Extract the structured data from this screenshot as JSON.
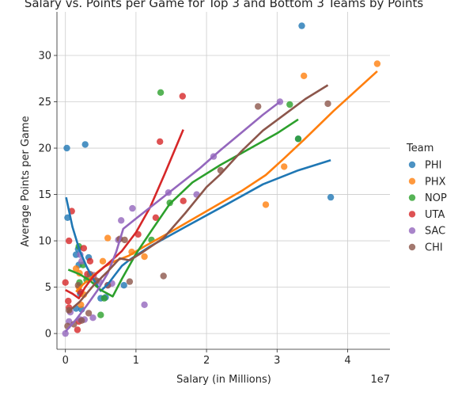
{
  "chart_data": {
    "type": "scatter",
    "title": "Salary vs. Points per Game for Top 3 and Bottom 3 Teams by Points",
    "xlabel": "Salary (in Millions)",
    "ylabel": "Average Points per Game",
    "x_offset_text": "1e7",
    "xlim": [
      -1200000,
      46000000
    ],
    "ylim": [
      -1.7,
      34.7
    ],
    "x_ticks": [
      0,
      10000000,
      20000000,
      30000000,
      40000000
    ],
    "x_tick_labels": [
      "0",
      "1",
      "2",
      "3",
      "4"
    ],
    "y_ticks": [
      0,
      5,
      10,
      15,
      20,
      25,
      30
    ],
    "y_tick_labels": [
      "0",
      "5",
      "10",
      "15",
      "20",
      "25",
      "30"
    ],
    "legend": {
      "title": "Team",
      "placement": "right"
    },
    "series": [
      {
        "name": "PHI",
        "color": "#1f77b4",
        "points": [
          [
            200000,
            20.0
          ],
          [
            2800000,
            20.4
          ],
          [
            300000,
            12.5
          ],
          [
            1500000,
            8.5
          ],
          [
            1800000,
            9.1
          ],
          [
            3300000,
            8.2
          ],
          [
            1900000,
            7.4
          ],
          [
            2100000,
            4.3
          ],
          [
            2300000,
            2.6
          ],
          [
            5000000,
            3.8
          ],
          [
            5700000,
            3.9
          ],
          [
            8300000,
            5.2
          ],
          [
            33500000,
            33.2
          ],
          [
            33000000,
            21.0
          ],
          [
            37600000,
            14.7
          ],
          [
            1500000,
            2.7
          ]
        ],
        "fit": [
          [
            100000,
            14.7
          ],
          [
            1000000,
            11.5
          ],
          [
            2000000,
            9.0
          ],
          [
            3000000,
            7.2
          ],
          [
            4000000,
            5.8
          ],
          [
            5000000,
            4.6
          ],
          [
            6000000,
            5.3
          ],
          [
            7000000,
            6.3
          ],
          [
            8000000,
            7.3
          ],
          [
            9000000,
            7.9
          ],
          [
            12000000,
            9.4
          ],
          [
            17000000,
            11.5
          ],
          [
            23000000,
            14.0
          ],
          [
            28000000,
            16.1
          ],
          [
            33000000,
            17.6
          ],
          [
            37600000,
            18.7
          ]
        ]
      },
      {
        "name": "PHX",
        "color": "#ff7f0e",
        "points": [
          [
            1500000,
            7.0
          ],
          [
            2000000,
            6.5
          ],
          [
            2600000,
            4.2
          ],
          [
            4000000,
            6.0
          ],
          [
            5300000,
            7.8
          ],
          [
            6000000,
            10.3
          ],
          [
            9400000,
            8.8
          ],
          [
            11200000,
            8.3
          ],
          [
            28400000,
            13.9
          ],
          [
            31000000,
            18.0
          ],
          [
            33800000,
            27.8
          ],
          [
            44200000,
            29.1
          ],
          [
            2200000,
            3.1
          ],
          [
            1900000,
            5.0
          ]
        ],
        "fit": [
          [
            1500000,
            4.5
          ],
          [
            2500000,
            5.3
          ],
          [
            4000000,
            6.3
          ],
          [
            5500000,
            7.2
          ],
          [
            7000000,
            7.8
          ],
          [
            9000000,
            8.4
          ],
          [
            11200000,
            9.4
          ],
          [
            15000000,
            11.0
          ],
          [
            20000000,
            13.2
          ],
          [
            25000000,
            15.4
          ],
          [
            28400000,
            17.1
          ],
          [
            31000000,
            18.9
          ],
          [
            33800000,
            20.9
          ],
          [
            38000000,
            24.0
          ],
          [
            44200000,
            28.3
          ]
        ]
      },
      {
        "name": "NOP",
        "color": "#2ca02c",
        "points": [
          [
            1900000,
            9.4
          ],
          [
            2500000,
            7.4
          ],
          [
            3000000,
            5.8
          ],
          [
            5000000,
            2.0
          ],
          [
            5500000,
            3.8
          ],
          [
            12200000,
            10.1
          ],
          [
            13500000,
            26.0
          ],
          [
            14800000,
            14.1
          ],
          [
            31800000,
            24.7
          ],
          [
            33000000,
            21.0
          ],
          [
            2000000,
            5.5
          ]
        ],
        "fit": [
          [
            400000,
            6.9
          ],
          [
            2000000,
            6.4
          ],
          [
            3500000,
            5.7
          ],
          [
            5000000,
            4.7
          ],
          [
            6700000,
            4.0
          ],
          [
            8000000,
            5.9
          ],
          [
            10000000,
            8.6
          ],
          [
            12200000,
            11.1
          ],
          [
            14800000,
            14.0
          ],
          [
            18000000,
            16.3
          ],
          [
            22000000,
            18.2
          ],
          [
            26000000,
            19.9
          ],
          [
            30000000,
            21.6
          ],
          [
            33000000,
            23.1
          ]
        ]
      },
      {
        "name": "UTA",
        "color": "#d62728",
        "points": [
          [
            0,
            5.5
          ],
          [
            400000,
            3.5
          ],
          [
            500000,
            2.8
          ],
          [
            500000,
            10.0
          ],
          [
            900000,
            13.2
          ],
          [
            1700000,
            0.4
          ],
          [
            2100000,
            4.5
          ],
          [
            2600000,
            9.2
          ],
          [
            3100000,
            6.4
          ],
          [
            3500000,
            7.8
          ],
          [
            10300000,
            10.7
          ],
          [
            12800000,
            12.5
          ],
          [
            13400000,
            20.7
          ],
          [
            16700000,
            14.3
          ],
          [
            16600000,
            25.6
          ],
          [
            1900000,
            1.3
          ]
        ],
        "fit": [
          [
            0,
            4.7
          ],
          [
            1000000,
            4.3
          ],
          [
            1900000,
            3.8
          ],
          [
            2800000,
            5.0
          ],
          [
            4000000,
            6.2
          ],
          [
            6000000,
            7.5
          ],
          [
            8000000,
            8.9
          ],
          [
            10000000,
            10.9
          ],
          [
            12000000,
            13.6
          ],
          [
            14000000,
            17.1
          ],
          [
            16700000,
            22.0
          ]
        ]
      },
      {
        "name": "SAC",
        "color": "#9467bd",
        "points": [
          [
            0,
            0.0
          ],
          [
            500000,
            1.3
          ],
          [
            700000,
            2.3
          ],
          [
            2100000,
            1.5
          ],
          [
            2700000,
            1.5
          ],
          [
            3900000,
            1.7
          ],
          [
            2100000,
            8.5
          ],
          [
            2300000,
            7.8
          ],
          [
            4000000,
            6.3
          ],
          [
            4800000,
            5.6
          ],
          [
            6600000,
            5.4
          ],
          [
            7500000,
            10.1
          ],
          [
            7900000,
            12.2
          ],
          [
            9500000,
            13.5
          ],
          [
            11200000,
            3.1
          ],
          [
            14600000,
            15.2
          ],
          [
            18600000,
            15.0
          ],
          [
            21000000,
            19.1
          ],
          [
            30400000,
            25.0
          ],
          [
            6000000,
            5.2
          ]
        ],
        "fit": [
          [
            0,
            0.2
          ],
          [
            1500000,
            1.5
          ],
          [
            3000000,
            3.0
          ],
          [
            4500000,
            4.6
          ],
          [
            6000000,
            6.5
          ],
          [
            7200000,
            8.8
          ],
          [
            8200000,
            11.3
          ],
          [
            10000000,
            12.4
          ],
          [
            13000000,
            14.2
          ],
          [
            16000000,
            16.0
          ],
          [
            19000000,
            17.8
          ],
          [
            22000000,
            19.8
          ],
          [
            25000000,
            21.7
          ],
          [
            28000000,
            23.6
          ],
          [
            30400000,
            25.0
          ]
        ]
      },
      {
        "name": "CHI",
        "color": "#8c564b",
        "points": [
          [
            300000,
            0.8
          ],
          [
            500000,
            2.5
          ],
          [
            1200000,
            1.0
          ],
          [
            1800000,
            5.2
          ],
          [
            2300000,
            1.4
          ],
          [
            3300000,
            2.2
          ],
          [
            3500000,
            6.4
          ],
          [
            4400000,
            5.7
          ],
          [
            6000000,
            5.2
          ],
          [
            7700000,
            10.2
          ],
          [
            8400000,
            10.1
          ],
          [
            9100000,
            5.6
          ],
          [
            13900000,
            6.2
          ],
          [
            22000000,
            17.6
          ],
          [
            27300000,
            24.5
          ],
          [
            37200000,
            24.8
          ]
        ],
        "fit": [
          [
            300000,
            2.3
          ],
          [
            2000000,
            3.4
          ],
          [
            4000000,
            5.2
          ],
          [
            6000000,
            6.7
          ],
          [
            7700000,
            8.1
          ],
          [
            9100000,
            7.9
          ],
          [
            11000000,
            8.8
          ],
          [
            13900000,
            10.3
          ],
          [
            17000000,
            13.0
          ],
          [
            20000000,
            15.8
          ],
          [
            22000000,
            17.2
          ],
          [
            25000000,
            19.7
          ],
          [
            28000000,
            21.9
          ],
          [
            31000000,
            23.6
          ],
          [
            34000000,
            25.3
          ],
          [
            37200000,
            26.8
          ]
        ]
      }
    ]
  }
}
